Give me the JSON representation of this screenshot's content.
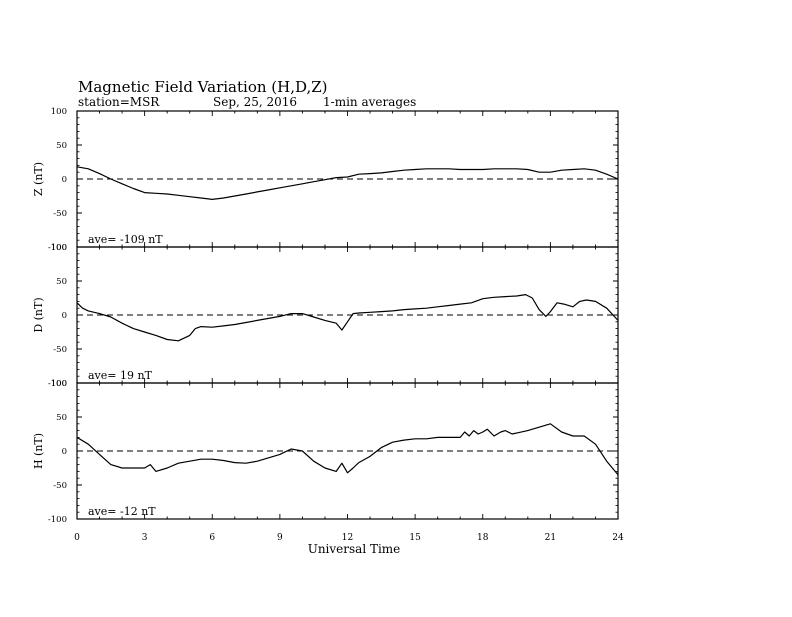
{
  "header": {
    "title": "Magnetic Field Variation (H,D,Z)",
    "station": "station=MSR",
    "date": "Sep, 25, 2016",
    "averaging": "1-min averages"
  },
  "colors": {
    "line": "#000000",
    "background": "#ffffff"
  },
  "chart_data": [
    {
      "type": "line",
      "panel": "Z",
      "ylabel": "Z (nT)",
      "ylim": [
        -100,
        100
      ],
      "yticks": [
        "100",
        "50",
        "0",
        "-50",
        "-100"
      ],
      "annotation": "ave= -109 nT",
      "zero_line": "dashed",
      "series": [
        {
          "x": [
            0,
            0.5,
            1,
            1.5,
            2,
            2.5,
            3,
            3.5,
            4,
            4.5,
            5,
            5.5,
            6,
            6.5,
            7,
            7.5,
            8,
            8.5,
            9,
            9.5,
            10,
            10.5,
            11,
            11.5,
            12,
            12.5,
            13,
            13.5,
            14,
            14.5,
            15,
            15.5,
            16,
            16.5,
            17,
            17.5,
            18,
            18.5,
            19,
            19.5,
            20,
            20.5,
            21,
            21.5,
            22,
            22.5,
            23,
            23.5,
            24
          ],
          "y": [
            18,
            15,
            8,
            0,
            -7,
            -14,
            -20,
            -21,
            -22,
            -24,
            -26,
            -28,
            -30,
            -28,
            -25,
            -22,
            -19,
            -16,
            -13,
            -10,
            -7,
            -4,
            -1,
            2,
            3,
            7,
            8,
            9,
            11,
            13,
            14,
            15,
            15,
            15,
            14,
            14,
            14,
            15,
            15,
            15,
            14,
            10,
            10,
            13,
            14,
            15,
            13,
            7,
            0
          ]
        }
      ]
    },
    {
      "type": "line",
      "panel": "D",
      "ylabel": "D (nT)",
      "ylim": [
        -100,
        100
      ],
      "yticks": [
        "100",
        "50",
        "0",
        "-50",
        "-100"
      ],
      "annotation": "ave= 19 nT",
      "zero_line": "dashed",
      "series": [
        {
          "x": [
            0,
            0.25,
            0.5,
            1,
            1.5,
            2,
            2.5,
            3,
            3.5,
            4,
            4.5,
            5,
            5.25,
            5.5,
            6,
            6.5,
            7,
            7.5,
            8,
            8.5,
            9,
            9.5,
            10,
            10.5,
            11,
            11.5,
            11.75,
            12,
            12.25,
            12.5,
            13,
            13.5,
            14,
            14.5,
            15,
            15.5,
            16,
            16.5,
            17,
            17.5,
            18,
            18.5,
            19,
            19.5,
            19.9,
            20.2,
            20.5,
            20.8,
            21,
            21.3,
            21.6,
            22,
            22.3,
            22.6,
            23,
            23.5,
            24
          ],
          "y": [
            18,
            10,
            6,
            2,
            -3,
            -12,
            -20,
            -25,
            -30,
            -36,
            -38,
            -30,
            -20,
            -17,
            -18,
            -16,
            -14,
            -11,
            -8,
            -5,
            -2,
            2,
            2,
            -3,
            -8,
            -12,
            -22,
            -10,
            2,
            3,
            4,
            5,
            6,
            8,
            9,
            10,
            12,
            14,
            16,
            18,
            24,
            26,
            27,
            28,
            30,
            25,
            8,
            -2,
            5,
            18,
            16,
            12,
            20,
            22,
            20,
            10,
            -8
          ]
        }
      ]
    },
    {
      "type": "line",
      "panel": "H",
      "ylabel": "H (nT)",
      "ylim": [
        -100,
        100
      ],
      "yticks": [
        "100",
        "50",
        "0",
        "-50",
        "-100"
      ],
      "annotation": "ave= -12 nT",
      "zero_line": "dashed",
      "series": [
        {
          "x": [
            0,
            0.5,
            1,
            1.5,
            2,
            2.5,
            3,
            3.25,
            3.5,
            4,
            4.5,
            5,
            5.5,
            6,
            6.5,
            7,
            7.5,
            8,
            8.5,
            9,
            9.5,
            10,
            10.5,
            11,
            11.5,
            11.75,
            12,
            12.25,
            12.5,
            13,
            13.5,
            14,
            14.5,
            15,
            15.5,
            16,
            16.5,
            17,
            17.2,
            17.4,
            17.6,
            17.8,
            18,
            18.2,
            18.5,
            18.8,
            19,
            19.3,
            19.6,
            20,
            20.5,
            21,
            21.5,
            22,
            22.5,
            23,
            23.5,
            24
          ],
          "y": [
            20,
            10,
            -5,
            -20,
            -25,
            -25,
            -25,
            -20,
            -30,
            -25,
            -18,
            -15,
            -12,
            -12,
            -14,
            -17,
            -18,
            -15,
            -10,
            -5,
            3,
            0,
            -15,
            -25,
            -30,
            -18,
            -32,
            -25,
            -17,
            -8,
            5,
            13,
            16,
            18,
            18,
            20,
            20,
            20,
            28,
            22,
            30,
            25,
            28,
            32,
            22,
            28,
            30,
            25,
            27,
            30,
            35,
            40,
            28,
            22,
            22,
            10,
            -15,
            -35
          ]
        }
      ]
    }
  ],
  "x_axis": {
    "label": "Universal Time",
    "range": [
      0,
      24
    ],
    "ticks": [
      "0",
      "3",
      "6",
      "9",
      "12",
      "15",
      "18",
      "21",
      "24"
    ]
  }
}
